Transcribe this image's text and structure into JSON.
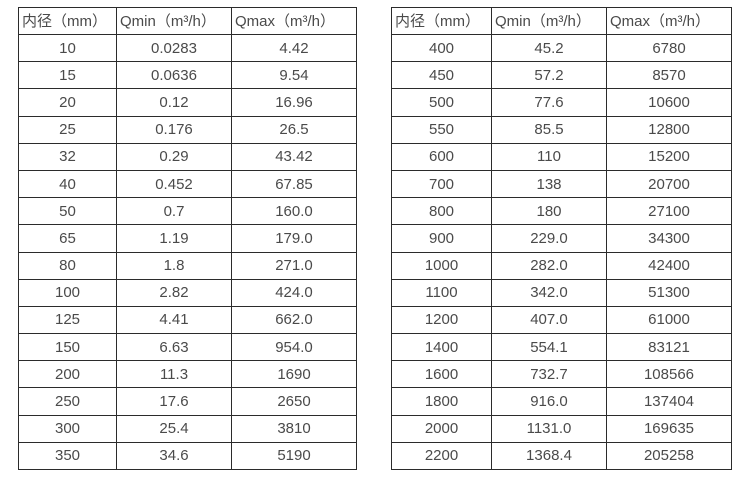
{
  "page": {
    "background_color": "#ffffff",
    "text_color": "#4a4a4a",
    "border_color": "#2b2b2b"
  },
  "tables": [
    {
      "name": "flow-rate-table-small-diameters",
      "headers": [
        "内径（mm）",
        "Qmin（m³/h）",
        "Qmax（m³/h）"
      ],
      "rows": [
        [
          "10",
          "0.0283",
          "4.42"
        ],
        [
          "15",
          "0.0636",
          "9.54"
        ],
        [
          "20",
          "0.12",
          "16.96"
        ],
        [
          "25",
          "0.176",
          "26.5"
        ],
        [
          "32",
          "0.29",
          "43.42"
        ],
        [
          "40",
          "0.452",
          "67.85"
        ],
        [
          "50",
          "0.7",
          "160.0"
        ],
        [
          "65",
          "1.19",
          "179.0"
        ],
        [
          "80",
          "1.8",
          "271.0"
        ],
        [
          "100",
          "2.82",
          "424.0"
        ],
        [
          "125",
          "4.41",
          "662.0"
        ],
        [
          "150",
          "6.63",
          "954.0"
        ],
        [
          "200",
          "11.3",
          "1690"
        ],
        [
          "250",
          "17.6",
          "2650"
        ],
        [
          "300",
          "25.4",
          "3810"
        ],
        [
          "350",
          "34.6",
          "5190"
        ]
      ]
    },
    {
      "name": "flow-rate-table-large-diameters",
      "headers": [
        "内径（mm）",
        "Qmin（m³/h）",
        "Qmax（m³/h）"
      ],
      "rows": [
        [
          "400",
          "45.2",
          "6780"
        ],
        [
          "450",
          "57.2",
          "8570"
        ],
        [
          "500",
          "77.6",
          "10600"
        ],
        [
          "550",
          "85.5",
          "12800"
        ],
        [
          "600",
          "110",
          "15200"
        ],
        [
          "700",
          "138",
          "20700"
        ],
        [
          "800",
          "180",
          "27100"
        ],
        [
          "900",
          "229.0",
          "34300"
        ],
        [
          "1000",
          "282.0",
          "42400"
        ],
        [
          "1100",
          "342.0",
          "51300"
        ],
        [
          "1200",
          "407.0",
          "61000"
        ],
        [
          "1400",
          "554.1",
          "83121"
        ],
        [
          "1600",
          "732.7",
          "108566"
        ],
        [
          "1800",
          "916.0",
          "137404"
        ],
        [
          "2000",
          "1131.0",
          "169635"
        ],
        [
          "2200",
          "1368.4",
          "205258"
        ]
      ]
    }
  ]
}
